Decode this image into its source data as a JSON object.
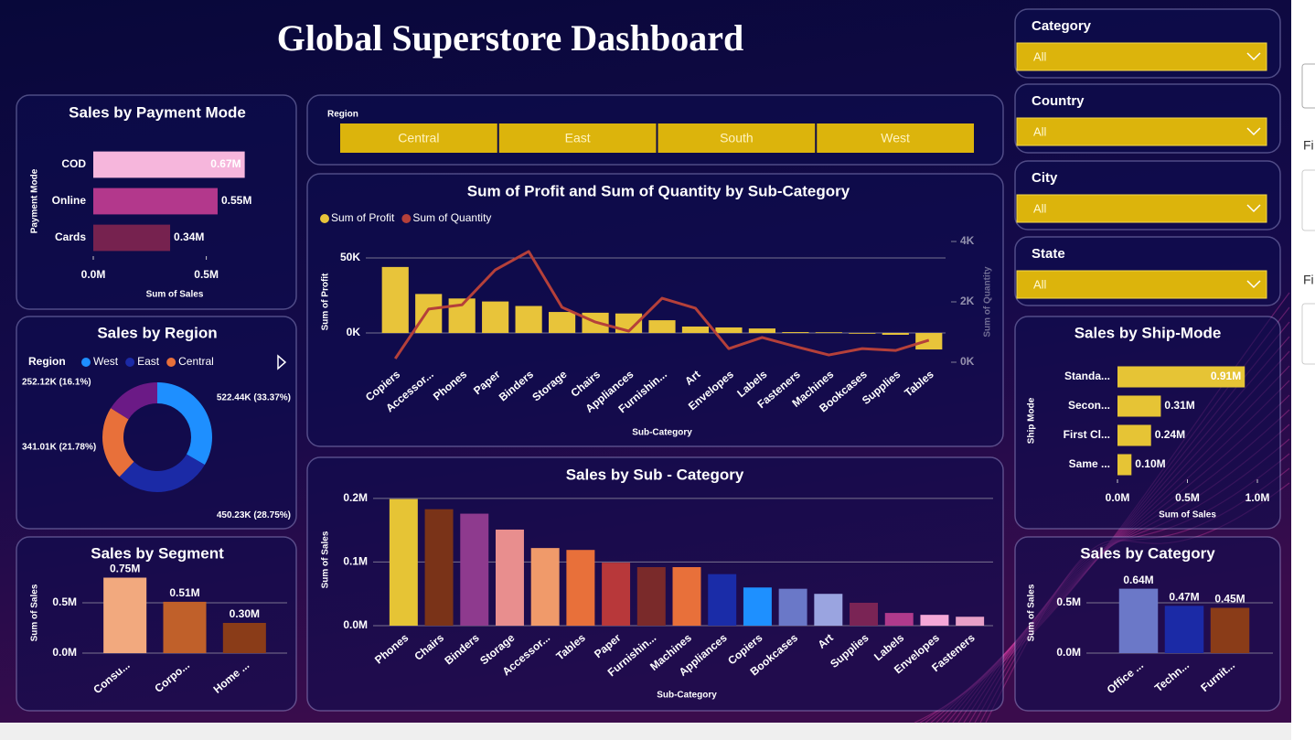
{
  "header": {
    "title": "Global Superstore Dashboard"
  },
  "slicers": [
    {
      "label": "Category",
      "value": "All"
    },
    {
      "label": "Country",
      "value": "All"
    },
    {
      "label": "City",
      "value": "All"
    },
    {
      "label": "State",
      "value": "All"
    }
  ],
  "region_slicer": {
    "label": "Region",
    "options": [
      "Central",
      "East",
      "South",
      "West"
    ]
  },
  "side_panel": {
    "labels": [
      "Fi",
      "Fi"
    ]
  },
  "chart_data": [
    {
      "type": "bar",
      "orientation": "horizontal",
      "title": "Sales by Payment Mode",
      "categories": [
        "COD",
        "Online",
        "Cards"
      ],
      "values": [
        670000,
        550000,
        340000
      ],
      "value_labels": [
        "0.67M",
        "0.55M",
        "0.34M"
      ],
      "colors": [
        "#f6b6dc",
        "#b3388c",
        "#76224f"
      ],
      "xlim": [
        0,
        720000
      ],
      "xticks": [
        {
          "value": 0,
          "label": "0.0M"
        },
        {
          "value": 500000,
          "label": "0.5M"
        }
      ],
      "x_label": "Sum of Sales",
      "y_label": "Payment Mode"
    },
    {
      "type": "donut",
      "title": "Sales by Region",
      "legend_title": "Region",
      "categories": [
        "West",
        "East",
        "Central",
        null
      ],
      "values": [
        522.44,
        450.23,
        341.01,
        252.12
      ],
      "value_labels": [
        "522.44K (33.37%)",
        "450.23K (28.75%)",
        "341.01K (21.78%)",
        "252.12K (16.1%)"
      ],
      "colors": [
        "#1e8fff",
        "#1b2aa6",
        "#e8703a",
        "#6b1a86"
      ]
    },
    {
      "type": "bar",
      "title": "Sales by Segment",
      "categories": [
        "Consu...",
        "Corpo...",
        "Home ..."
      ],
      "values": [
        750000,
        510000,
        300000
      ],
      "value_labels": [
        "0.75M",
        "0.51M",
        "0.30M"
      ],
      "colors": [
        "#f2a97e",
        "#c0602a",
        "#8a3c18"
      ],
      "ylim": [
        0,
        800000
      ],
      "yticks": [
        {
          "value": 0,
          "label": "0.0M"
        },
        {
          "value": 500000,
          "label": "0.5M"
        }
      ],
      "y_label": "Sum of Sales",
      "grid": true
    },
    {
      "type": "combo",
      "title": "Sum of Profit and Sum of Quantity by Sub-Category",
      "categories": [
        "Copiers",
        "Accessor...",
        "Phones",
        "Paper",
        "Binders",
        "Storage",
        "Chairs",
        "Appliances",
        "Furnishin...",
        "Art",
        "Envelopes",
        "Labels",
        "Fasteners",
        "Machines",
        "Bookcases",
        "Supplies",
        "Tables"
      ],
      "series": [
        {
          "name": "Sum of Profit",
          "kind": "bar",
          "color": "#e8c43a",
          "values": [
            44000,
            26000,
            23000,
            21000,
            18000,
            14000,
            13500,
            13000,
            8500,
            4300,
            3700,
            3000,
            600,
            500,
            -500,
            -1200,
            -11000
          ]
        },
        {
          "name": "Sum of Quantity",
          "kind": "line",
          "axis": "y2",
          "color": "#b5403a",
          "values": [
            120,
            1760,
            1900,
            3060,
            3670,
            1820,
            1330,
            1030,
            2120,
            1790,
            450,
            820,
            520,
            240,
            450,
            390,
            730
          ]
        }
      ],
      "ylim": [
        -19500,
        61000
      ],
      "yticks": [
        {
          "value": 0,
          "label": "0K"
        },
        {
          "value": 50000,
          "label": "50K"
        }
      ],
      "y2lim": [
        0,
        4000
      ],
      "y2ticks": [
        {
          "value": 0,
          "label": "0K"
        },
        {
          "value": 2000,
          "label": "2K"
        },
        {
          "value": 4000,
          "label": "4K"
        }
      ],
      "x_label": "Sub-Category",
      "y_label": "Sum of Profit",
      "y2_label": "Sum of Quantity",
      "grid": true
    },
    {
      "type": "bar",
      "title": "Sales by Sub - Category",
      "categories": [
        "Phones",
        "Chairs",
        "Binders",
        "Storage",
        "Accessor...",
        "Tables",
        "Paper",
        "Furnishin...",
        "Machines",
        "Appliances",
        "Copiers",
        "Bookcases",
        "Art",
        "Supplies",
        "Labels",
        "Envelopes",
        "Fasteners"
      ],
      "values": [
        199000,
        183000,
        176000,
        151000,
        122000,
        119000,
        99000,
        92000,
        92000,
        81000,
        60000,
        58000,
        50000,
        36000,
        20000,
        17000,
        14000
      ],
      "colors": [
        "#e6c435",
        "#7a3318",
        "#8e3a8e",
        "#e88e8e",
        "#f09a6a",
        "#e8703a",
        "#b8383a",
        "#7a2a2a",
        "#e8703a",
        "#1a2ca8",
        "#1e90ff",
        "#6a78c8",
        "#9aa4e0",
        "#7a2455",
        "#b03a8c",
        "#f5a8d8",
        "#e8a0c8"
      ],
      "ylim": [
        0,
        207000
      ],
      "yticks": [
        {
          "value": 0,
          "label": "0.0M"
        },
        {
          "value": 100000,
          "label": "0.1M"
        },
        {
          "value": 200000,
          "label": "0.2M"
        }
      ],
      "x_label": "Sub-Category",
      "y_label": "Sum of Sales",
      "grid": true
    },
    {
      "type": "bar",
      "orientation": "horizontal",
      "title": "Sales by Ship-Mode",
      "categories": [
        "Standa...",
        "Secon...",
        "First Cl...",
        "Same ..."
      ],
      "values": [
        910000,
        310000,
        240000,
        100000
      ],
      "value_labels": [
        "0.91M",
        "0.31M",
        "0.24M",
        "0.10M"
      ],
      "color": "#e6c435",
      "xlim": [
        0,
        1000000
      ],
      "xticks": [
        {
          "value": 0,
          "label": "0.0M"
        },
        {
          "value": 500000,
          "label": "0.5M"
        },
        {
          "value": 1000000,
          "label": "1.0M"
        }
      ],
      "x_label": "Sum of Sales",
      "y_label": "Ship Mode"
    },
    {
      "type": "bar",
      "title": "Sales by Category",
      "categories": [
        "Office ...",
        "Techn...",
        "Furnit..."
      ],
      "values": [
        640000,
        470000,
        450000
      ],
      "value_labels": [
        "0.64M",
        "0.47M",
        "0.45M"
      ],
      "colors": [
        "#6b78c8",
        "#1b2aa6",
        "#8a3c18"
      ],
      "ylim": [
        0,
        800000
      ],
      "yticks": [
        {
          "value": 0,
          "label": "0.0M"
        },
        {
          "value": 500000,
          "label": "0.5M"
        }
      ],
      "y_label": "Sum of Sales",
      "grid": true
    }
  ]
}
